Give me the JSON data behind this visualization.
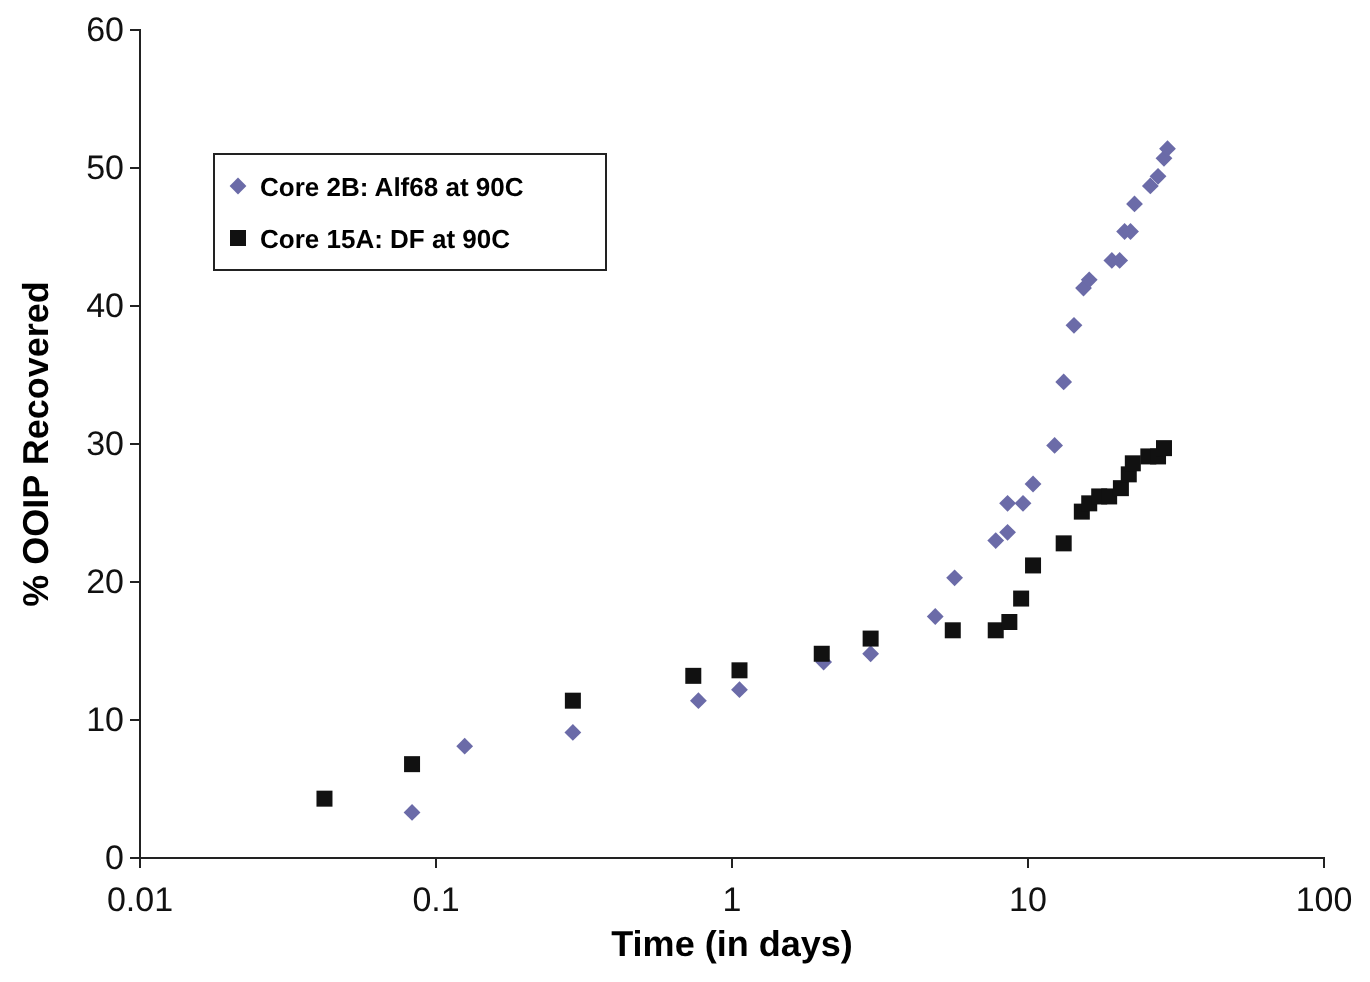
{
  "chart_data": {
    "type": "scatter",
    "xlabel": "Time (in days)",
    "ylabel": "% OOIP Recovered",
    "log": "x",
    "xlim": [
      0.01,
      100
    ],
    "xticks": [
      0.01,
      0.1,
      1,
      10,
      100
    ],
    "ylim": [
      0,
      60
    ],
    "yticks": [
      0,
      10,
      20,
      30,
      40,
      50,
      60
    ],
    "grid": false,
    "legend": "top left",
    "series": [
      {
        "name": "Core 2B: Alf68 at 90C",
        "color": "#6b6ba8",
        "marker": "diamond",
        "x": [
          0.083,
          0.125,
          0.29,
          0.77,
          1.06,
          2.04,
          2.94,
          4.86,
          5.65,
          7.78,
          8.53,
          8.53,
          9.62,
          10.4,
          12.3,
          13.2,
          14.3,
          15.4,
          16.1,
          19.2,
          20.4,
          21.2,
          22.2,
          22.9,
          25.9,
          27.5,
          28.8,
          29.6
        ],
        "values": [
          3.3,
          8.1,
          9.1,
          11.4,
          12.2,
          14.2,
          14.8,
          17.5,
          20.3,
          23.0,
          23.6,
          25.7,
          25.7,
          27.1,
          29.9,
          34.5,
          38.6,
          41.3,
          41.9,
          43.3,
          43.3,
          45.4,
          45.4,
          47.4,
          48.7,
          49.4,
          50.7,
          51.4
        ]
      },
      {
        "name": "Core 15A: DF at 90C",
        "color": "#111111",
        "marker": "square",
        "x": [
          0.042,
          0.083,
          0.29,
          0.74,
          1.06,
          2.01,
          2.94,
          5.57,
          7.78,
          8.65,
          9.48,
          10.4,
          13.2,
          15.2,
          16.1,
          17.4,
          18.8,
          20.6,
          21.9,
          22.6,
          25.5,
          27.5,
          28.8
        ],
        "values": [
          4.3,
          6.8,
          11.4,
          13.2,
          13.6,
          14.8,
          15.9,
          16.5,
          16.5,
          17.1,
          18.8,
          21.2,
          22.8,
          25.1,
          25.7,
          26.2,
          26.2,
          26.8,
          27.8,
          28.6,
          29.1,
          29.1,
          29.7
        ]
      }
    ]
  }
}
